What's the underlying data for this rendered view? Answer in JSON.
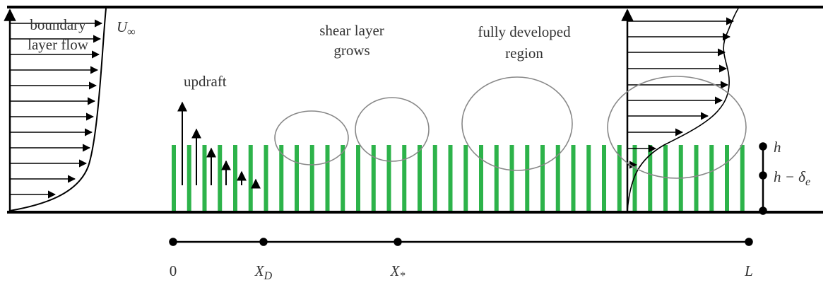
{
  "labels": {
    "boundary_layer_flow": [
      "boundary",
      "layer flow"
    ],
    "u_inf": {
      "main": "U",
      "sub": "∞"
    },
    "updraft": "updraft",
    "shear_layer": [
      "shear layer",
      "grows"
    ],
    "fully_developed": [
      "fully developed",
      "region"
    ],
    "h": "h",
    "h_minus_delta": {
      "main": "h − δ",
      "sub": "e"
    }
  },
  "axis": {
    "zero": "0",
    "x_d": {
      "main": "X",
      "sub": "D"
    },
    "x_star": {
      "main": "X",
      "sub": "*"
    },
    "L": "L"
  }
}
